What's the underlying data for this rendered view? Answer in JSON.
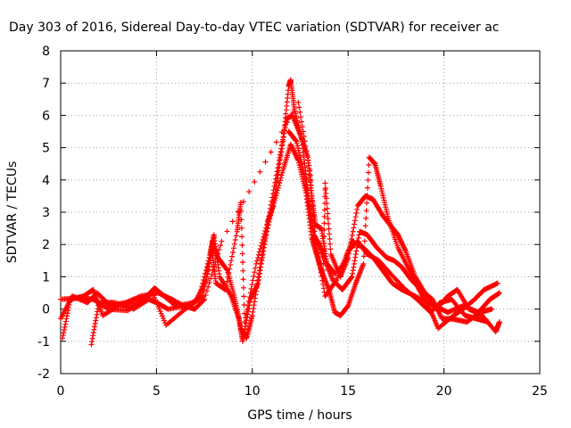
{
  "chart_data": {
    "type": "scatter",
    "title": "Day 303 of 2016, Sidereal Day-to-day VTEC variation (SDTVAR) for receiver ac",
    "xlabel": "GPS time / hours",
    "ylabel": "SDTVAR / TECUs",
    "xlim": [
      0,
      25
    ],
    "ylim": [
      -2,
      8
    ],
    "xticks": [
      "0",
      "5",
      "10",
      "15",
      "20",
      "25"
    ],
    "yticks": [
      "-2",
      "-1",
      "0",
      "1",
      "2",
      "3",
      "4",
      "5",
      "6",
      "7",
      "8"
    ],
    "grid": true,
    "marker": "+",
    "color": "#ff0000",
    "series": [
      {
        "points": [
          [
            0.0,
            0.3
          ],
          [
            1.0,
            0.35
          ],
          [
            1.7,
            0.3
          ],
          [
            2.5,
            0.0
          ],
          [
            3.5,
            -0.05
          ],
          [
            4.5,
            0.4
          ],
          [
            4.9,
            0.65
          ],
          [
            5.3,
            0.45
          ],
          [
            6.0,
            0.1
          ],
          [
            7.0,
            0.2
          ],
          [
            7.6,
            0.9
          ],
          [
            7.9,
            2.1
          ],
          [
            8.2,
            1.6
          ],
          [
            8.7,
            1.2
          ],
          [
            9.1,
            0.3
          ],
          [
            9.4,
            -0.6
          ],
          [
            9.7,
            -0.9
          ],
          [
            10.0,
            -0.2
          ],
          [
            10.4,
            1.3
          ],
          [
            10.9,
            3.0
          ],
          [
            11.4,
            4.6
          ],
          [
            11.8,
            5.9
          ],
          [
            12.1,
            6.0
          ],
          [
            12.5,
            5.4
          ],
          [
            12.9,
            4.7
          ],
          [
            13.1,
            3.5
          ],
          [
            13.3,
            2.6
          ],
          [
            13.6,
            2.5
          ],
          [
            13.9,
            1.4
          ],
          [
            14.3,
            1.1
          ],
          [
            14.8,
            1.4
          ],
          [
            15.2,
            2.1
          ],
          [
            15.8,
            1.9
          ],
          [
            16.3,
            1.6
          ],
          [
            16.8,
            1.2
          ],
          [
            17.3,
            0.8
          ],
          [
            17.8,
            0.6
          ],
          [
            18.5,
            0.4
          ],
          [
            19.5,
            0.1
          ],
          [
            20.2,
            -0.1
          ],
          [
            21.0,
            0.1
          ],
          [
            21.8,
            -0.1
          ],
          [
            22.4,
            0.3
          ],
          [
            22.9,
            0.5
          ]
        ]
      },
      {
        "points": [
          [
            0.1,
            -0.9
          ],
          [
            0.5,
            0.3
          ],
          [
            1.2,
            0.4
          ],
          [
            1.7,
            0.6
          ],
          [
            2.2,
            -0.2
          ],
          [
            3.0,
            0.1
          ],
          [
            4.0,
            0.2
          ],
          [
            4.8,
            0.5
          ],
          [
            5.5,
            -0.5
          ],
          [
            6.5,
            0.0
          ],
          [
            7.2,
            0.3
          ],
          [
            7.8,
            1.7
          ],
          [
            8.0,
            2.3
          ],
          [
            8.3,
            1.0
          ],
          [
            8.9,
            0.4
          ],
          [
            9.3,
            -0.3
          ],
          [
            9.5,
            -1.0
          ],
          [
            9.9,
            0.3
          ],
          [
            10.3,
            0.8
          ],
          [
            10.7,
            2.2
          ],
          [
            11.2,
            3.6
          ],
          [
            11.6,
            5.2
          ],
          [
            11.9,
            6.9
          ],
          [
            12.0,
            7.1
          ],
          [
            12.2,
            6.2
          ],
          [
            12.6,
            5.2
          ],
          [
            12.9,
            3.6
          ],
          [
            13.2,
            2.3
          ],
          [
            13.5,
            2.0
          ],
          [
            13.8,
            1.5
          ],
          [
            14.2,
            0.9
          ],
          [
            14.7,
            0.6
          ],
          [
            15.2,
            1.0
          ],
          [
            15.6,
            2.4
          ],
          [
            16.0,
            2.3
          ],
          [
            16.5,
            1.9
          ],
          [
            17.0,
            1.6
          ],
          [
            17.4,
            1.5
          ],
          [
            17.8,
            1.3
          ],
          [
            18.3,
            0.9
          ],
          [
            18.8,
            0.6
          ],
          [
            19.4,
            0.3
          ],
          [
            19.9,
            -0.3
          ],
          [
            20.4,
            -0.3
          ],
          [
            21.2,
            -0.4
          ],
          [
            21.9,
            -0.1
          ],
          [
            22.5,
            0.0
          ]
        ]
      },
      {
        "points": [
          [
            1.6,
            -1.1
          ],
          [
            2.0,
            0.2
          ],
          [
            2.8,
            0.2
          ],
          [
            3.8,
            0.0
          ],
          [
            4.6,
            0.3
          ],
          [
            5.0,
            0.2
          ],
          [
            5.6,
            0.0
          ],
          [
            6.6,
            0.1
          ],
          [
            7.4,
            0.4
          ],
          [
            7.9,
            1.8
          ],
          [
            8.1,
            0.8
          ],
          [
            8.6,
            0.6
          ],
          [
            9.2,
            2.4
          ],
          [
            9.4,
            3.3
          ],
          [
            9.6,
            -0.4
          ],
          [
            10.2,
            1.4
          ],
          [
            10.8,
            2.7
          ],
          [
            11.1,
            3.2
          ],
          [
            11.6,
            4.3
          ],
          [
            12.0,
            5.1
          ],
          [
            12.4,
            4.6
          ],
          [
            12.8,
            3.6
          ],
          [
            13.1,
            2.2
          ],
          [
            13.4,
            1.6
          ],
          [
            13.7,
            1.0
          ],
          [
            13.8,
            3.9
          ],
          [
            14.1,
            1.7
          ],
          [
            14.6,
            1.0
          ],
          [
            15.0,
            1.6
          ],
          [
            15.5,
            3.2
          ],
          [
            15.9,
            3.5
          ],
          [
            16.3,
            3.4
          ],
          [
            16.8,
            2.9
          ],
          [
            17.2,
            2.6
          ],
          [
            17.6,
            2.3
          ],
          [
            18.0,
            1.8
          ],
          [
            18.5,
            1.0
          ],
          [
            19.0,
            0.5
          ],
          [
            19.6,
            0.0
          ],
          [
            20.2,
            0.4
          ],
          [
            20.7,
            0.6
          ],
          [
            21.3,
            0.0
          ],
          [
            22.0,
            -0.2
          ],
          [
            22.7,
            -0.7
          ],
          [
            22.9,
            -0.4
          ]
        ]
      },
      {
        "points": [
          [
            11.9,
            5.5
          ],
          [
            12.3,
            5.2
          ],
          [
            12.7,
            4.2
          ],
          [
            13.0,
            3.0
          ],
          [
            13.3,
            1.9
          ],
          [
            13.6,
            1.2
          ],
          [
            14.0,
            0.6
          ],
          [
            14.3,
            -0.1
          ],
          [
            14.6,
            -0.2
          ],
          [
            15.0,
            0.1
          ],
          [
            15.4,
            0.8
          ],
          [
            15.8,
            1.4
          ],
          [
            16.1,
            4.7
          ],
          [
            16.4,
            4.5
          ],
          [
            16.7,
            3.8
          ],
          [
            17.1,
            2.8
          ],
          [
            17.6,
            1.9
          ],
          [
            18.2,
            1.2
          ],
          [
            18.7,
            0.6
          ],
          [
            19.2,
            0.1
          ],
          [
            19.7,
            -0.6
          ],
          [
            20.5,
            -0.2
          ],
          [
            21.0,
            0.0
          ],
          [
            21.6,
            0.3
          ],
          [
            22.1,
            0.6
          ],
          [
            22.8,
            0.8
          ]
        ]
      },
      {
        "points": [
          [
            0.0,
            -0.3
          ],
          [
            0.6,
            0.4
          ],
          [
            1.4,
            0.2
          ],
          [
            1.9,
            0.5
          ],
          [
            2.6,
            0.1
          ],
          [
            3.4,
            0.2
          ],
          [
            4.2,
            0.4
          ],
          [
            5.1,
            0.5
          ],
          [
            5.8,
            0.3
          ],
          [
            6.4,
            0.1
          ],
          [
            7.0,
            0.0
          ],
          [
            7.5,
            0.3
          ],
          [
            8.4,
            2.1
          ],
          [
            12.4,
            6.4
          ],
          [
            13.0,
            4.3
          ],
          [
            13.3,
            2.1
          ],
          [
            13.8,
            0.4
          ],
          [
            14.4,
            0.9
          ],
          [
            15.0,
            1.8
          ],
          [
            15.5,
            2.1
          ],
          [
            16.0,
            1.7
          ],
          [
            16.6,
            1.5
          ],
          [
            17.2,
            1.1
          ],
          [
            18.0,
            0.6
          ],
          [
            18.6,
            0.3
          ],
          [
            19.3,
            -0.1
          ],
          [
            19.8,
            0.2
          ],
          [
            20.4,
            0.3
          ],
          [
            21.1,
            -0.2
          ],
          [
            21.7,
            -0.3
          ],
          [
            22.3,
            -0.4
          ]
        ]
      }
    ]
  }
}
